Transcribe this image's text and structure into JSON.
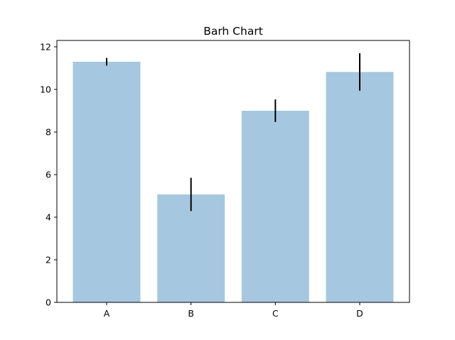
{
  "chart_data": {
    "type": "bar",
    "title": "Barh Chart",
    "xlabel": "",
    "ylabel": "",
    "categories": [
      "A",
      "B",
      "C",
      "D"
    ],
    "values": [
      11.3,
      5.07,
      9.0,
      10.82
    ],
    "errors": [
      0.18,
      0.78,
      0.53,
      0.88
    ],
    "ylim": [
      0,
      12.3
    ],
    "yticks": [
      0,
      2,
      4,
      6,
      8,
      10,
      12
    ],
    "grid": false,
    "bar_color": "#a5c8e0",
    "error_color": "#000000"
  }
}
